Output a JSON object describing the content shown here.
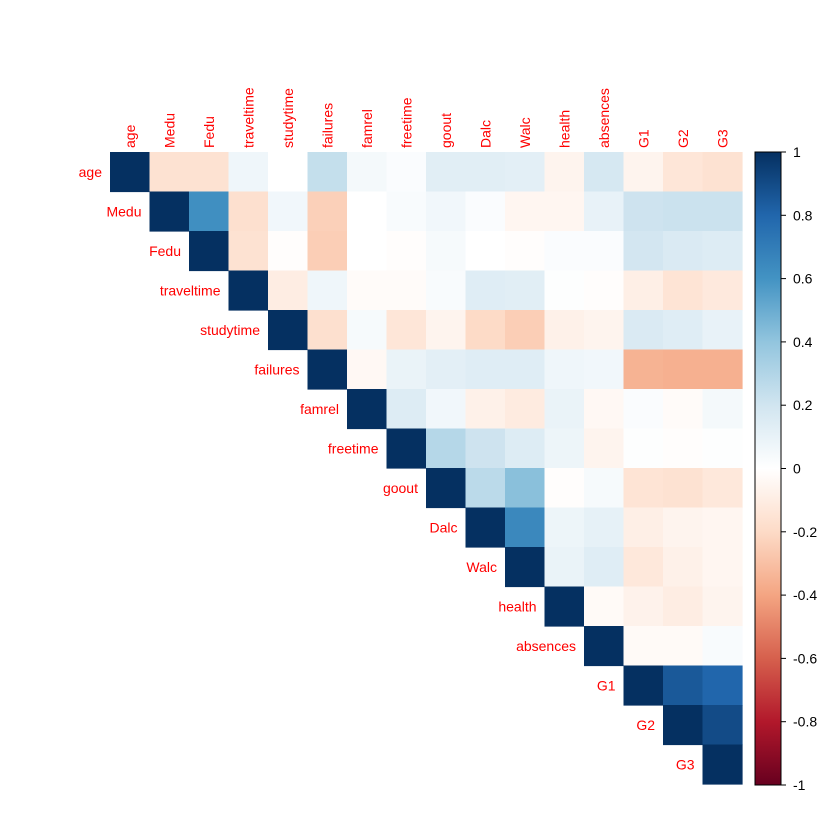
{
  "chart_data": {
    "type": "heatmap",
    "layout": "upper-triangle",
    "variables": [
      "age",
      "Medu",
      "Fedu",
      "traveltime",
      "studytime",
      "failures",
      "famrel",
      "freetime",
      "goout",
      "Dalc",
      "Walc",
      "health",
      "absences",
      "G1",
      "G2",
      "G3"
    ],
    "matrix": [
      [
        1,
        -0.16,
        -0.16,
        0.07,
        0.0,
        0.24,
        0.05,
        0.02,
        0.13,
        0.13,
        0.12,
        -0.06,
        0.18,
        -0.06,
        -0.14,
        -0.16
      ],
      [
        null,
        1,
        0.62,
        -0.17,
        0.06,
        -0.24,
        -0.0,
        0.03,
        0.06,
        0.02,
        -0.05,
        -0.05,
        0.1,
        0.21,
        0.22,
        0.22
      ],
      [
        null,
        null,
        1,
        -0.16,
        -0.01,
        -0.25,
        -0.0,
        -0.01,
        0.04,
        0.0,
        -0.01,
        0.02,
        0.02,
        0.19,
        0.16,
        0.15
      ],
      [
        null,
        null,
        null,
        1,
        -0.1,
        0.07,
        -0.02,
        -0.02,
        0.03,
        0.14,
        0.13,
        0.01,
        -0.01,
        -0.09,
        -0.15,
        -0.12
      ],
      [
        null,
        null,
        null,
        null,
        1,
        -0.17,
        0.04,
        -0.14,
        -0.06,
        -0.2,
        -0.25,
        -0.08,
        -0.06,
        0.16,
        0.14,
        0.1
      ],
      [
        null,
        null,
        null,
        null,
        null,
        1,
        -0.04,
        0.09,
        0.12,
        0.14,
        0.14,
        0.07,
        0.06,
        -0.35,
        -0.36,
        -0.36
      ],
      [
        null,
        null,
        null,
        null,
        null,
        null,
        1,
        0.15,
        0.06,
        -0.08,
        -0.11,
        0.09,
        -0.04,
        0.02,
        -0.02,
        0.05
      ],
      [
        null,
        null,
        null,
        null,
        null,
        null,
        null,
        1,
        0.29,
        0.21,
        0.15,
        0.08,
        -0.06,
        0.01,
        -0.01,
        0.01
      ],
      [
        null,
        null,
        null,
        null,
        null,
        null,
        null,
        null,
        1,
        0.27,
        0.42,
        -0.01,
        0.04,
        -0.15,
        -0.16,
        -0.13
      ],
      [
        null,
        null,
        null,
        null,
        null,
        null,
        null,
        null,
        null,
        1,
        0.65,
        0.08,
        0.11,
        -0.09,
        -0.06,
        -0.05
      ],
      [
        null,
        null,
        null,
        null,
        null,
        null,
        null,
        null,
        null,
        null,
        1,
        0.09,
        0.14,
        -0.13,
        -0.08,
        -0.05
      ],
      [
        null,
        null,
        null,
        null,
        null,
        null,
        null,
        null,
        null,
        null,
        null,
        1,
        -0.03,
        -0.07,
        -0.1,
        -0.06
      ],
      [
        null,
        null,
        null,
        null,
        null,
        null,
        null,
        null,
        null,
        null,
        null,
        null,
        1,
        -0.03,
        -0.03,
        0.03
      ],
      [
        null,
        null,
        null,
        null,
        null,
        null,
        null,
        null,
        null,
        null,
        null,
        null,
        null,
        1,
        0.85,
        0.8
      ],
      [
        null,
        null,
        null,
        null,
        null,
        null,
        null,
        null,
        null,
        null,
        null,
        null,
        null,
        null,
        1,
        0.9
      ],
      [
        null,
        null,
        null,
        null,
        null,
        null,
        null,
        null,
        null,
        null,
        null,
        null,
        null,
        null,
        null,
        1
      ]
    ],
    "color_scale": {
      "min": -1,
      "max": 1,
      "ticks": [
        "1",
        "0.8",
        "0.6",
        "0.4",
        "0.2",
        "0",
        "-0.2",
        "-0.4",
        "-0.6",
        "-0.8",
        "-1"
      ],
      "stops": [
        {
          "v": -1.0,
          "c": "#67001f"
        },
        {
          "v": -0.8,
          "c": "#b2182b"
        },
        {
          "v": -0.6,
          "c": "#d6604d"
        },
        {
          "v": -0.4,
          "c": "#f4a582"
        },
        {
          "v": -0.2,
          "c": "#fddbc7"
        },
        {
          "v": 0.0,
          "c": "#ffffff"
        },
        {
          "v": 0.2,
          "c": "#d1e5f0"
        },
        {
          "v": 0.4,
          "c": "#92c5de"
        },
        {
          "v": 0.6,
          "c": "#4393c3"
        },
        {
          "v": 0.8,
          "c": "#2166ac"
        },
        {
          "v": 1.0,
          "c": "#053061"
        }
      ]
    },
    "label_color": "#ff0000",
    "legend_placement": "right"
  }
}
